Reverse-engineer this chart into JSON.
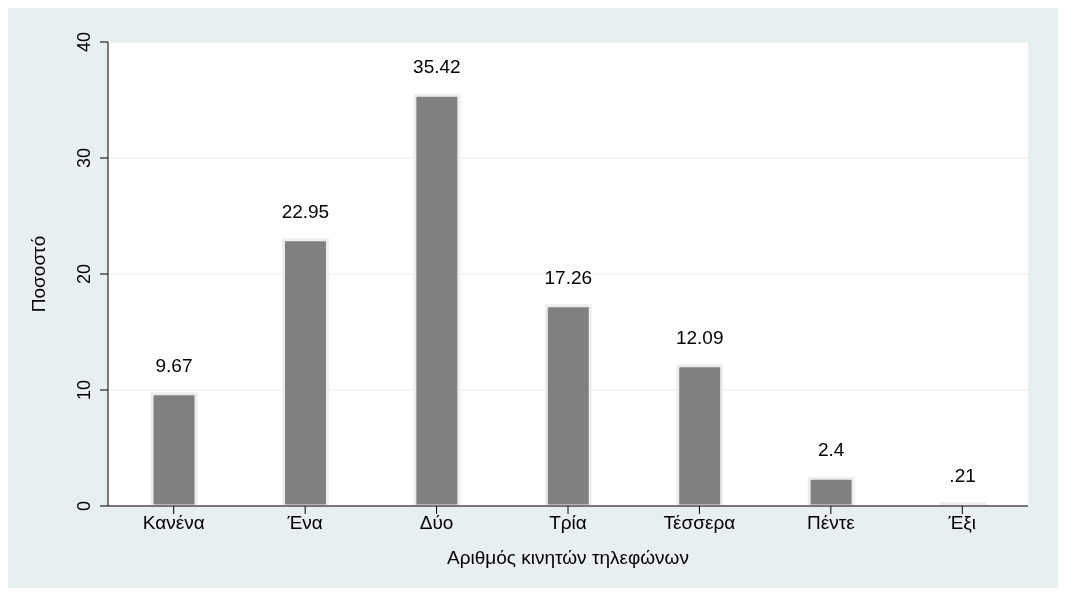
{
  "chart_data": {
    "type": "bar",
    "xlabel": "Αριθμός κινητών τηλεφώνων",
    "ylabel": "Ποσοστό",
    "categories": [
      "Κανένα",
      "Ένα",
      "Δύο",
      "Τρία",
      "Τέσσερα",
      "Πέντε",
      "Έξι"
    ],
    "values": [
      9.67,
      22.95,
      35.42,
      17.26,
      12.09,
      2.4,
      0.21
    ],
    "value_labels": [
      "9.67",
      "22.95",
      "35.42",
      "17.26",
      "12.09",
      "2.4",
      ".21"
    ],
    "color": "#808080",
    "ylim": [
      0,
      40
    ],
    "yticks": [
      0,
      10,
      20,
      30,
      40
    ],
    "grid": "y"
  }
}
